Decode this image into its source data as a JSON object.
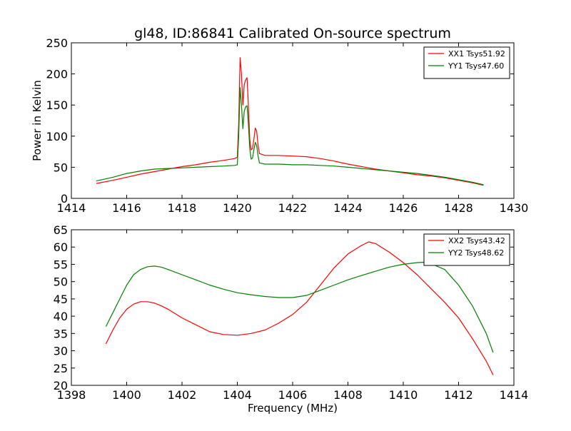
{
  "title": "gl48, ID:86841 Calibrated On-source spectrum",
  "chart_data": [
    {
      "type": "line",
      "title": "gl48, ID:86841 Calibrated On-source spectrum",
      "xlabel": "",
      "ylabel": "Power in Kelvin",
      "xlim": [
        1414,
        1430
      ],
      "ylim": [
        0,
        250
      ],
      "xticks": [
        "1414",
        "1416",
        "1418",
        "1420",
        "1422",
        "1424",
        "1426",
        "1428",
        "1430"
      ],
      "yticks": [
        "0",
        "50",
        "100",
        "150",
        "200",
        "250"
      ],
      "grid": false,
      "legend": "top-right",
      "series": [
        {
          "name": "XX1 Tsys51.92",
          "color": "#ff0000",
          "x": [
            1414.9,
            1415.5,
            1416,
            1416.5,
            1417,
            1417.5,
            1418,
            1418.5,
            1419,
            1419.5,
            1419.9,
            1420.0,
            1420.05,
            1420.1,
            1420.15,
            1420.2,
            1420.25,
            1420.3,
            1420.35,
            1420.4,
            1420.45,
            1420.5,
            1420.55,
            1420.6,
            1420.65,
            1420.7,
            1420.75,
            1420.8,
            1421.0,
            1421.5,
            1422,
            1422.5,
            1423,
            1423.5,
            1424,
            1424.5,
            1425,
            1425.5,
            1426,
            1426.5,
            1427,
            1427.5,
            1428,
            1428.5,
            1428.9
          ],
          "values": [
            24,
            29,
            34,
            39,
            43,
            47,
            51,
            54,
            58,
            61,
            64,
            66,
            120,
            226,
            200,
            150,
            183,
            190,
            194,
            150,
            95,
            78,
            80,
            95,
            113,
            108,
            85,
            72,
            69,
            69,
            68,
            67,
            64,
            60,
            55,
            51,
            47,
            44,
            41,
            38,
            36,
            33,
            29,
            25,
            21
          ]
        },
        {
          "name": "YY1 Tsys47.60",
          "color": "#008000",
          "x": [
            1414.9,
            1415.5,
            1416,
            1416.5,
            1417,
            1417.5,
            1418,
            1418.5,
            1419,
            1419.5,
            1419.9,
            1420.0,
            1420.05,
            1420.1,
            1420.15,
            1420.2,
            1420.25,
            1420.3,
            1420.35,
            1420.4,
            1420.45,
            1420.5,
            1420.55,
            1420.6,
            1420.65,
            1420.7,
            1420.75,
            1420.8,
            1421.0,
            1421.5,
            1422,
            1422.5,
            1423,
            1423.5,
            1424,
            1424.5,
            1425,
            1425.5,
            1426,
            1426.5,
            1427,
            1427.5,
            1428,
            1428.5,
            1428.9
          ],
          "values": [
            28,
            34,
            40,
            44,
            47,
            48,
            49,
            50,
            51,
            52,
            53,
            54,
            100,
            178,
            150,
            112,
            140,
            147,
            149,
            120,
            80,
            63,
            65,
            78,
            90,
            85,
            68,
            57,
            55,
            55,
            54,
            54,
            53,
            52,
            50,
            48,
            46,
            44,
            42,
            40,
            37,
            34,
            30,
            26,
            22
          ]
        }
      ]
    },
    {
      "type": "line",
      "title": "",
      "xlabel": "Frequency (MHz)",
      "ylabel": "",
      "xlim": [
        1398,
        1414
      ],
      "ylim": [
        20,
        65
      ],
      "xticks": [
        "1398",
        "1400",
        "1402",
        "1404",
        "1406",
        "1408",
        "1410",
        "1412",
        "1414"
      ],
      "yticks": [
        "20",
        "25",
        "30",
        "35",
        "40",
        "45",
        "50",
        "55",
        "60",
        "65"
      ],
      "grid": false,
      "legend": "top-right",
      "series": [
        {
          "name": "XX2 Tsys43.42",
          "color": "#ff0000",
          "x": [
            1399.25,
            1399.5,
            1399.75,
            1400.0,
            1400.25,
            1400.5,
            1400.75,
            1401.0,
            1401.25,
            1401.5,
            1402.0,
            1402.5,
            1403.0,
            1403.5,
            1404.0,
            1404.5,
            1405.0,
            1405.5,
            1406.0,
            1406.5,
            1407.0,
            1407.5,
            1408.0,
            1408.5,
            1408.75,
            1409.0,
            1409.5,
            1410.0,
            1410.5,
            1411.0,
            1411.5,
            1412.0,
            1412.5,
            1413.0,
            1413.25
          ],
          "values": [
            32,
            36,
            39.5,
            42,
            43.5,
            44.2,
            44.2,
            43.8,
            43,
            42,
            39.5,
            37.5,
            35.5,
            34.7,
            34.5,
            35,
            36,
            38,
            40.5,
            44,
            49,
            54,
            58,
            60.5,
            61.5,
            61,
            58.5,
            55.5,
            52,
            48,
            44,
            39.5,
            33.5,
            27,
            23
          ]
        },
        {
          "name": "YY2 Tsys48.62",
          "color": "#008000",
          "x": [
            1399.25,
            1399.5,
            1399.75,
            1400.0,
            1400.25,
            1400.5,
            1400.75,
            1401.0,
            1401.25,
            1401.5,
            1402.0,
            1402.5,
            1403.0,
            1403.5,
            1404.0,
            1404.5,
            1405.0,
            1405.5,
            1406.0,
            1406.5,
            1407.0,
            1407.5,
            1408.0,
            1408.5,
            1409.0,
            1409.5,
            1410.0,
            1410.5,
            1410.75,
            1411.0,
            1411.5,
            1412.0,
            1412.5,
            1413.0,
            1413.25
          ],
          "values": [
            37,
            41,
            45,
            49,
            52,
            53.5,
            54.3,
            54.5,
            54.2,
            53.5,
            52,
            50.5,
            49,
            47.8,
            46.8,
            46.2,
            45.7,
            45.4,
            45.4,
            46,
            47.5,
            49,
            50.5,
            51.8,
            53,
            54.2,
            55,
            55.5,
            55.6,
            55.2,
            53.5,
            49,
            43,
            35,
            29.5
          ]
        }
      ]
    }
  ]
}
